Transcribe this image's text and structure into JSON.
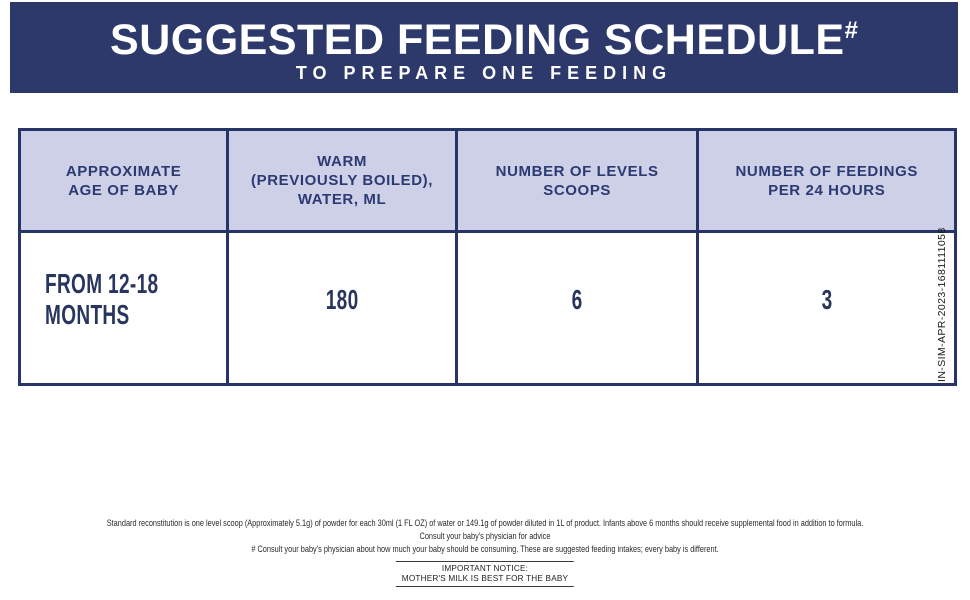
{
  "banner": {
    "title": "SUGGESTED FEEDING SCHEDULE",
    "title_mark": "#",
    "subtitle": "TO PREPARE ONE FEEDING"
  },
  "table": {
    "headers": [
      "APPROXIMATE\nAGE OF BABY",
      "WARM\n(PREVIOUSLY BOILED),\nWATER, ML",
      "NUMBER OF LEVELS\nSCOOPS",
      "NUMBER OF FEEDINGS\nPER 24 HOURS"
    ],
    "rows": [
      {
        "age": "FROM 12-18\nMONTHS",
        "water_ml": "180",
        "scoops": "6",
        "feedings": "3"
      }
    ]
  },
  "side_code": "IN-SIM-APR-2023-1681111058",
  "footnotes": {
    "line1": "Standard reconstitution is one level scoop (Approximately 5.1g) of powder for each 30ml (1 FL OZ) of water or 149.1g of powder diluted in 1L of product. Infants above 6 months should receive supplemental food in addition to formula.",
    "line2": "Consult your baby's physician for advice",
    "line3": "# Consult your baby's physician about how much your baby should be consuming. These are suggested feeding intakes; every baby is different."
  },
  "notice": {
    "line1": "IMPORTANT NOTICE:",
    "line2": "MOTHER'S MILK IS BEST FOR THE BABY"
  },
  "colors": {
    "banner_navy": "#2d396b",
    "table_border_navy": "#263468",
    "header_cell_lavender": "#cdd0e6",
    "header_text_navy": "#2b3a72",
    "data_text_navy": "#28355f",
    "fine_print_gray": "#2a2a2a"
  }
}
